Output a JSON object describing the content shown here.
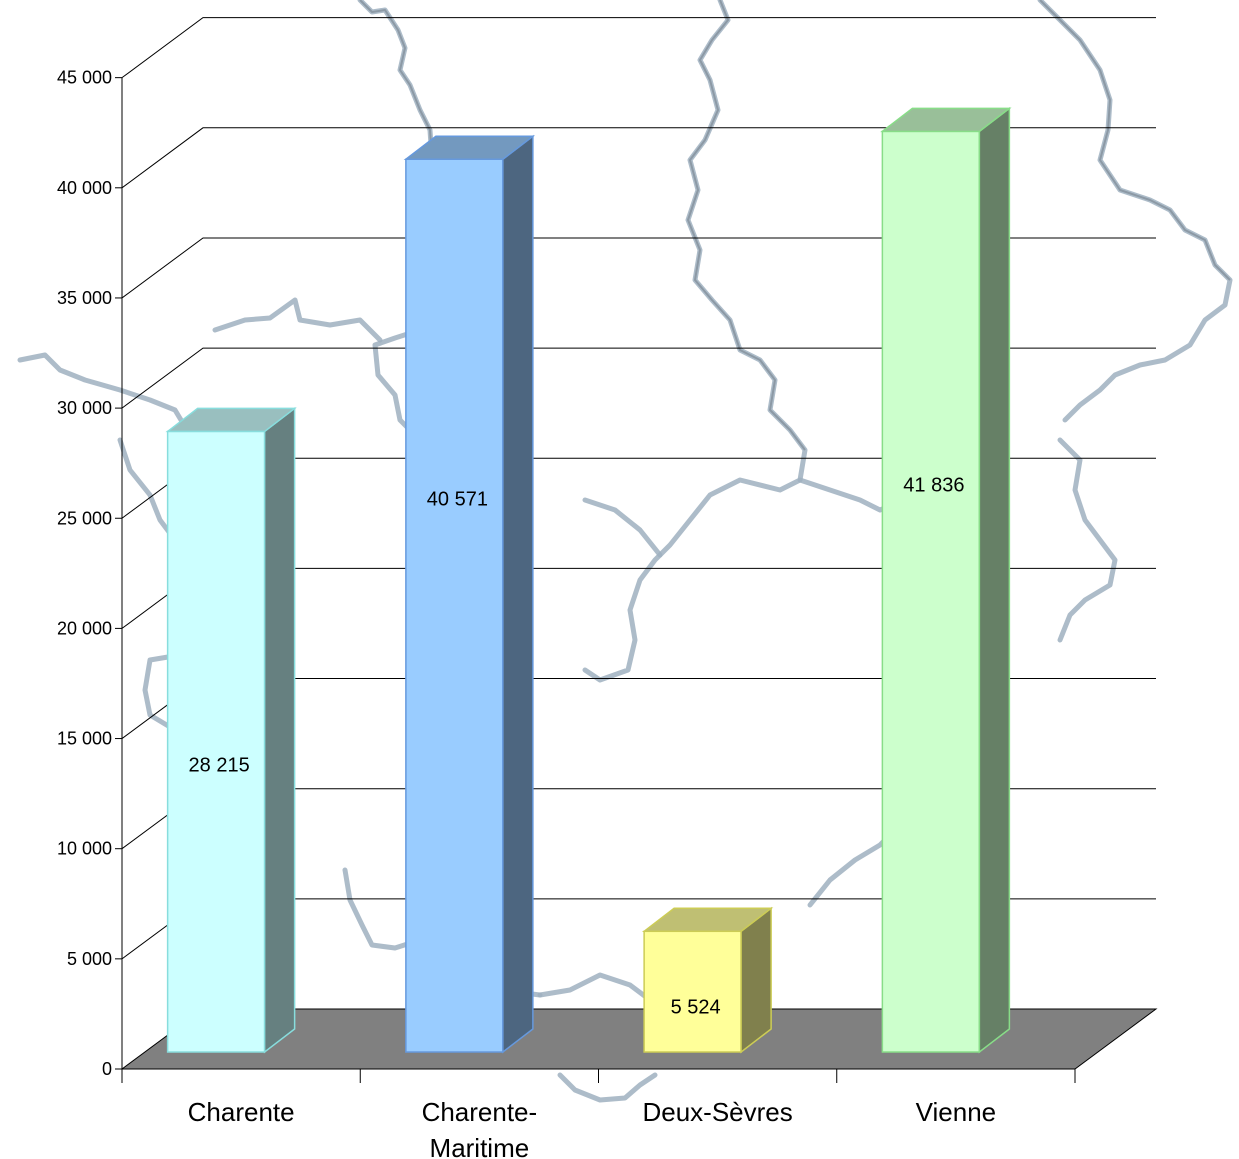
{
  "chart_data": {
    "type": "bar",
    "title": "",
    "xlabel": "",
    "ylabel": "",
    "categories": [
      "Charente",
      "Charente-Maritime",
      "Deux-Sèvres",
      "Vienne"
    ],
    "category_lines": [
      [
        "Charente"
      ],
      [
        "Charente-",
        "Maritime"
      ],
      [
        "Deux-Sèvres"
      ],
      [
        "Vienne"
      ]
    ],
    "values": [
      28215,
      40571,
      5524,
      41836
    ],
    "value_labels": [
      "28 215",
      "40 571",
      "5 524",
      "41 836"
    ],
    "ylim": [
      0,
      45000
    ],
    "yticks": [
      0,
      5000,
      10000,
      15000,
      20000,
      25000,
      30000,
      35000,
      40000,
      45000
    ],
    "ytick_labels": [
      "0",
      "5 000",
      "10 000",
      "15 000",
      "20 000",
      "25 000",
      "30 000",
      "35 000",
      "40 000",
      "45 000"
    ],
    "grid": true,
    "legend": "none",
    "style": "3d-column",
    "colors": {
      "bars": [
        "#ccffff",
        "#99ccff",
        "#ffff99",
        "#ccffcc"
      ],
      "bar_edges": [
        "#88dddd",
        "#6699dd",
        "#cccc55",
        "#88dd88"
      ],
      "floor": "#808080",
      "grid": "#000000",
      "map": "#9fb0c0"
    }
  }
}
